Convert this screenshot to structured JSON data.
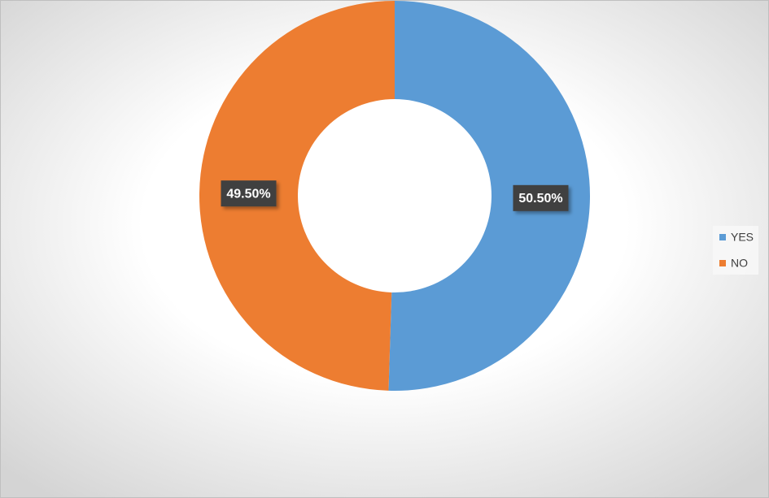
{
  "chart_data": {
    "type": "donut",
    "categories": [
      "YES",
      "NO"
    ],
    "values": [
      50.5,
      49.5
    ],
    "value_labels": [
      "50.50%",
      "49.50%"
    ],
    "colors": [
      "#5b9bd5",
      "#ed7d31"
    ],
    "legend": "right"
  }
}
